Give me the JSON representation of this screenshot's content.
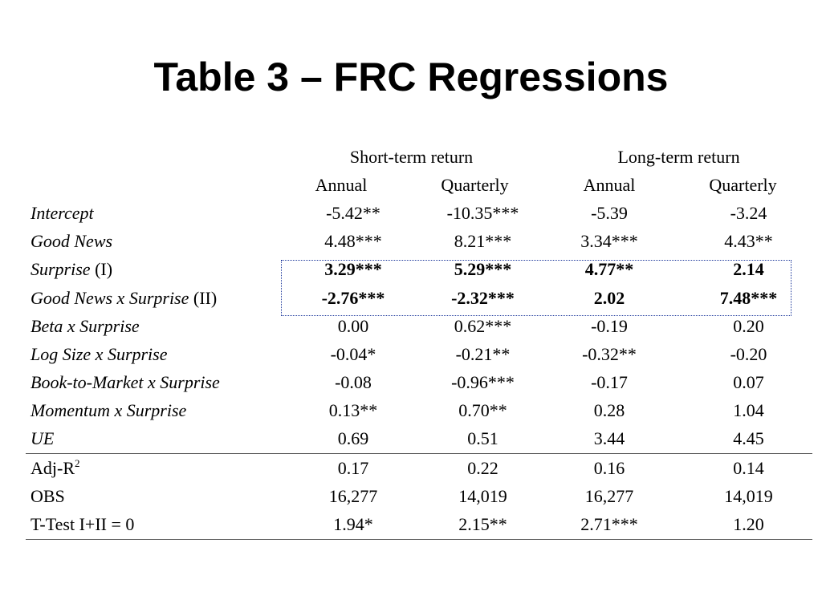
{
  "title": "Table 3 – FRC Regressions",
  "column_groups": [
    "Short-term return",
    "Long-term return"
  ],
  "subheaders": [
    "Annual",
    "Quarterly",
    "Annual",
    "Quarterly"
  ],
  "rows": [
    {
      "label_italic": "Intercept",
      "label_plain": "",
      "values": [
        "-5.42**",
        "-10.35***",
        "-5.39",
        "-3.24"
      ]
    },
    {
      "label_italic": "Good News",
      "label_plain": "",
      "values": [
        "4.48***",
        "8.21***",
        "3.34***",
        "4.43**"
      ]
    },
    {
      "label_italic": "Surprise",
      "label_plain": " (I)",
      "values": [
        "3.29***",
        "5.29***",
        "4.77**",
        "2.14"
      ]
    },
    {
      "label_italic": "Good News x Surprise",
      "label_plain": " (II)",
      "values": [
        "-2.76***",
        "-2.32***",
        "2.02",
        "7.48***"
      ]
    },
    {
      "label_italic": "Beta x Surprise",
      "label_plain": "",
      "values": [
        "0.00",
        "0.62***",
        "-0.19",
        "0.20"
      ]
    },
    {
      "label_italic": "Log Size x Surprise",
      "label_plain": "",
      "values": [
        "-0.04*",
        "-0.21**",
        "-0.32**",
        "-0.20"
      ]
    },
    {
      "label_italic": "Book-to-Market x Surprise",
      "label_plain": "",
      "values": [
        "-0.08",
        "-0.96***",
        "-0.17",
        "0.07"
      ]
    },
    {
      "label_italic": "Momentum x Surprise",
      "label_plain": "",
      "values": [
        "0.13**",
        "0.70**",
        "0.28",
        "1.04"
      ]
    },
    {
      "label_italic": "UE",
      "label_plain": "",
      "values": [
        "0.69",
        "0.51",
        "3.44",
        "4.45"
      ]
    }
  ],
  "stats": [
    {
      "label": "Adj-R",
      "sup": "2",
      "values": [
        "0.17",
        "0.22",
        "0.16",
        "0.14"
      ]
    },
    {
      "label": "OBS",
      "sup": "",
      "values": [
        "16,277",
        "14,019",
        "16,277",
        "14,019"
      ]
    },
    {
      "label": "T-Test I+II = 0",
      "sup": "",
      "values": [
        "1.94*",
        "2.15**",
        "2.71***",
        "1.20"
      ]
    }
  ],
  "highlight_color": "#1f3a9c"
}
